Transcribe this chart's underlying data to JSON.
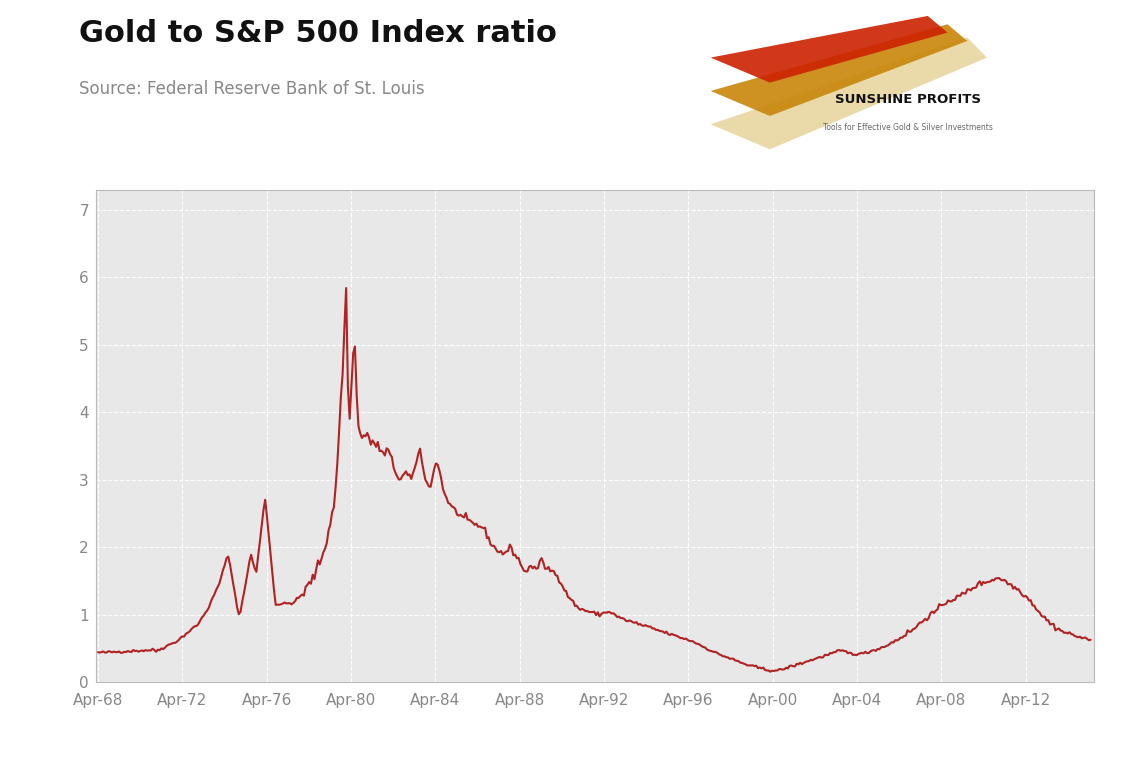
{
  "title": "Gold to S&P 500 Index ratio",
  "subtitle": "Source: Federal Reserve Bank of St. Louis",
  "line_color": "#b22222",
  "line_width": 1.5,
  "background_color": "#ffffff",
  "plot_bg_color": "#e8e8e8",
  "grid_color": "#ffffff",
  "title_fontsize": 22,
  "subtitle_fontsize": 12,
  "tick_label_color": "#888888",
  "tick_fontsize": 11,
  "ylim": [
    0,
    7.3
  ],
  "yticks": [
    0,
    1,
    2,
    3,
    4,
    5,
    6,
    7
  ],
  "xtick_years": [
    1968,
    1972,
    1976,
    1980,
    1984,
    1988,
    1992,
    1996,
    2000,
    2004,
    2008,
    2012
  ],
  "xtick_labels": [
    "Apr-68",
    "Apr-72",
    "Apr-76",
    "Apr-80",
    "Apr-84",
    "Apr-88",
    "Apr-92",
    "Apr-96",
    "Apr-00",
    "Apr-04",
    "Apr-08",
    "Apr-12"
  ],
  "logo_text1": "SUNSHINE PROFITS",
  "logo_subtext": "Tools for Effective Gold & Silver Investments"
}
